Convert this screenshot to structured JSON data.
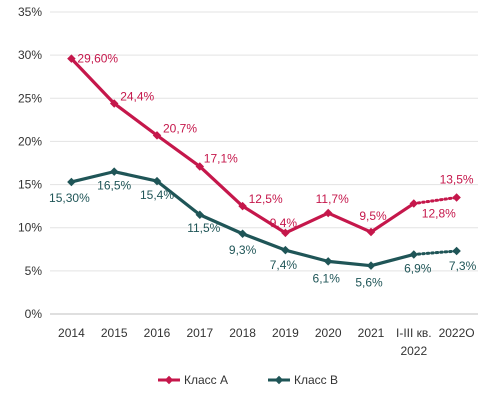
{
  "chart_data": {
    "type": "line",
    "title": "",
    "xlabel": "",
    "ylabel": "",
    "categories": [
      "2014",
      "2015",
      "2016",
      "2017",
      "2018",
      "2019",
      "2020",
      "2021",
      "I-III кв. 2022",
      "2022О"
    ],
    "ylim": [
      0,
      35
    ],
    "yticks": [
      0,
      5,
      10,
      15,
      20,
      25,
      30,
      35
    ],
    "ytick_labels": [
      "0%",
      "5%",
      "10%",
      "15%",
      "20%",
      "25%",
      "30%",
      "35%"
    ],
    "grid": true,
    "legend_position": "bottom",
    "series": [
      {
        "name": "Класс А",
        "color": "#C5174B",
        "values": [
          29.6,
          24.4,
          20.7,
          17.1,
          12.5,
          9.4,
          11.7,
          9.5,
          12.8,
          13.5
        ],
        "labels": [
          "29,60%",
          "24,4%",
          "20,7%",
          "17,1%",
          "12,5%",
          "9,4%",
          "11,7%",
          "9,5%",
          "12,8%",
          "13,5%"
        ],
        "forecast_from_index": 8
      },
      {
        "name": "Класс В",
        "color": "#1F5557",
        "values": [
          15.3,
          16.5,
          15.4,
          11.5,
          9.3,
          7.4,
          6.1,
          5.6,
          6.9,
          7.3
        ],
        "labels": [
          "15,30%",
          "16,5%",
          "15,4%",
          "11,5%",
          "9,3%",
          "7,4%",
          "6,1%",
          "5,6%",
          "6,9%",
          "7,3%"
        ],
        "forecast_from_index": 8
      }
    ]
  }
}
